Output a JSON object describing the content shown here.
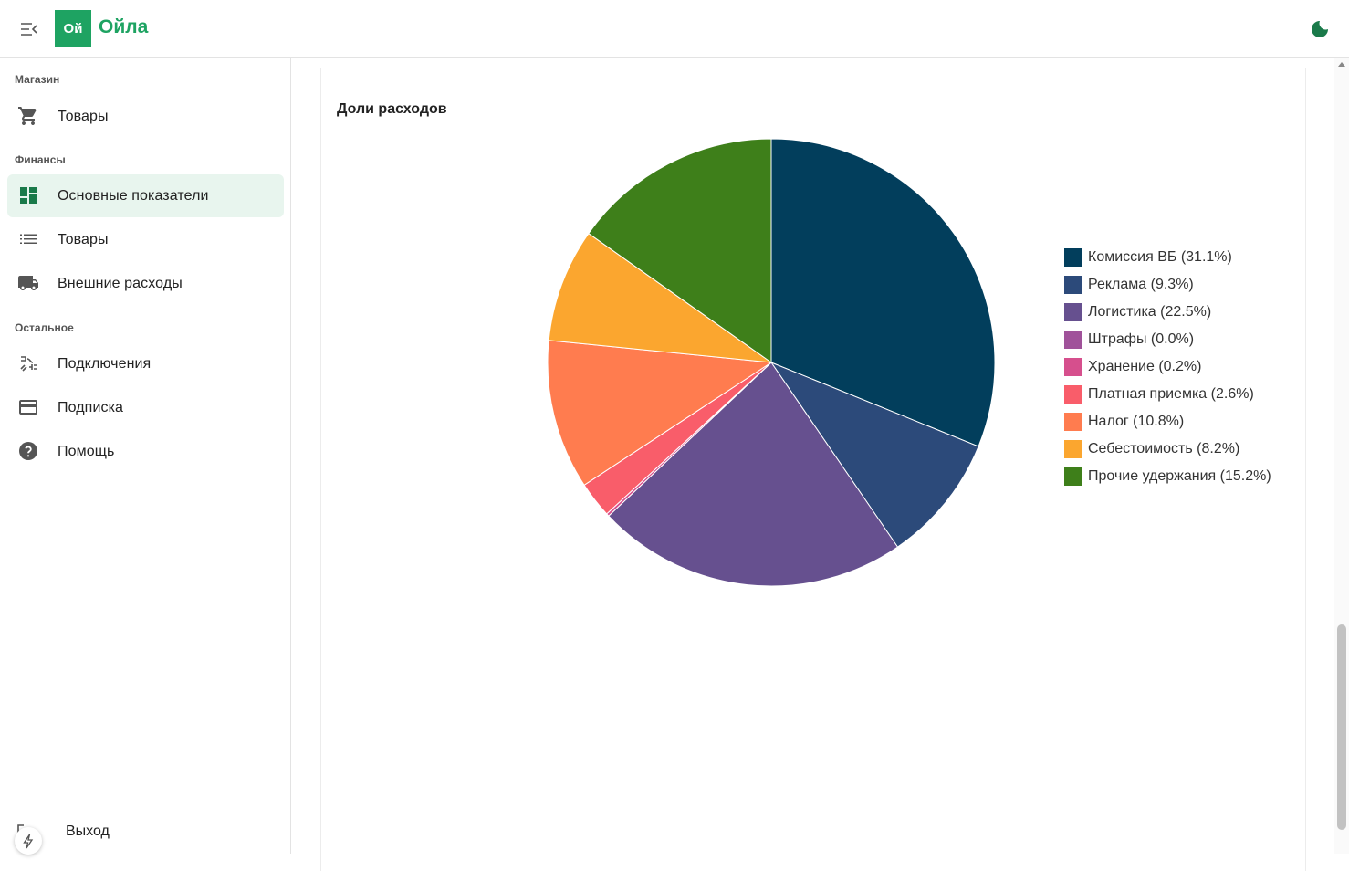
{
  "header": {
    "logo_text": "Ой",
    "brand": "Ойла"
  },
  "sidebar": {
    "sections": [
      {
        "title": "Магазин"
      },
      {
        "title": "Финансы"
      },
      {
        "title": "Остальное"
      }
    ],
    "items": [
      {
        "label": "Товары",
        "icon": "cart-icon"
      },
      {
        "label": "Основные показатели",
        "icon": "dashboard-icon",
        "active": true
      },
      {
        "label": "Товары",
        "icon": "list-icon"
      },
      {
        "label": "Внешние расходы",
        "icon": "truck-icon"
      },
      {
        "label": "Подключения",
        "icon": "plug-icon"
      },
      {
        "label": "Подписка",
        "icon": "credit-card-icon"
      },
      {
        "label": "Помощь",
        "icon": "help-icon"
      }
    ],
    "logout_label": "Выход"
  },
  "card": {
    "title": "Доли расходов"
  },
  "chart_data": {
    "type": "pie",
    "title": "Доли расходов",
    "legend_position": "right",
    "slices": [
      {
        "label": "Комиссия ВБ (31.1%)",
        "value": 31.1,
        "color": "#023e5c"
      },
      {
        "label": "Реклама (9.3%)",
        "value": 9.3,
        "color": "#2c4a7a"
      },
      {
        "label": "Логистика (22.5%)",
        "value": 22.5,
        "color": "#66508f"
      },
      {
        "label": "Штрафы (0.0%)",
        "value": 0.0,
        "color": "#a0529a"
      },
      {
        "label": "Хранение (0.2%)",
        "value": 0.2,
        "color": "#d64f8d"
      },
      {
        "label": "Платная приемка (2.6%)",
        "value": 2.6,
        "color": "#f95d6a"
      },
      {
        "label": "Налог (10.8%)",
        "value": 10.8,
        "color": "#ff7c4f"
      },
      {
        "label": "Себестоимость (8.2%)",
        "value": 8.2,
        "color": "#fba62f"
      },
      {
        "label": "Прочие удержания (15.2%)",
        "value": 15.2,
        "color": "#3e7f1a"
      }
    ]
  }
}
